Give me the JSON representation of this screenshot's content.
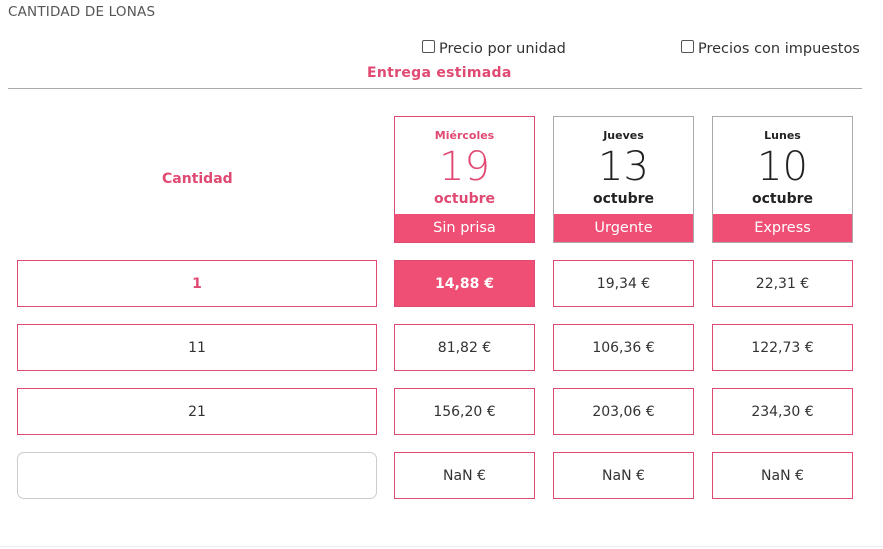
{
  "section_title": "CANTIDAD DE LONAS",
  "options": {
    "unit_price_label": "Precio por unidad",
    "tax_price_label": "Precios con impuestos"
  },
  "delivery_heading": "Entrega estimada",
  "quantity_heading": "Cantidad",
  "days": [
    {
      "weekday": "Miércoles",
      "day": "19",
      "month": "octubre",
      "speed": "Sin prisa",
      "selected": true
    },
    {
      "weekday": "Jueves",
      "day": "13",
      "month": "octubre",
      "speed": "Urgente",
      "selected": false
    },
    {
      "weekday": "Lunes",
      "day": "10",
      "month": "octubre",
      "speed": "Express",
      "selected": false
    }
  ],
  "rows": [
    {
      "quantity": "1",
      "prices": [
        "14,88 €",
        "19,34 €",
        "22,31 €"
      ],
      "selected": true
    },
    {
      "quantity": "11",
      "prices": [
        "81,82 €",
        "106,36 €",
        "122,73 €"
      ]
    },
    {
      "quantity": "21",
      "prices": [
        "156,20 €",
        "203,06 €",
        "234,30 €"
      ]
    },
    {
      "quantity": "",
      "prices": [
        "NaN €",
        "NaN €",
        "NaN €"
      ]
    }
  ],
  "colors": {
    "accent": "#ef4f74",
    "accent_text": "#e04a72"
  }
}
